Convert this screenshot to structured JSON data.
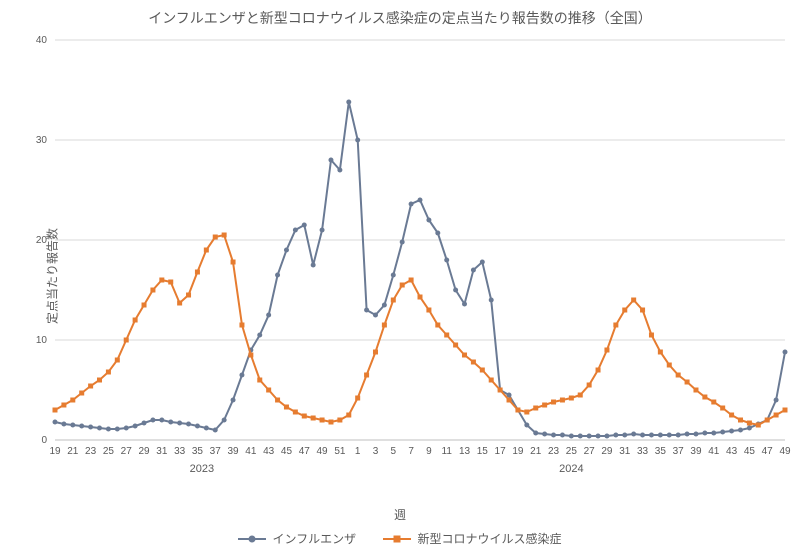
{
  "title": "インフルエンザと新型コロナウイルス感染症の定点当たり報告数の推移（全国）",
  "ylabel": "定点当たり報告数",
  "xlabel": "週",
  "chart": {
    "type": "line",
    "background_color": "#ffffff",
    "grid_color": "#d9d9d9",
    "axis_color": "#bfbfbf",
    "text_color": "#595959",
    "title_fontsize": 14,
    "label_fontsize": 12,
    "tick_fontsize": 10,
    "ylim": [
      0,
      40
    ],
    "ytick_step": 10,
    "marker_size": 5,
    "line_width": 2,
    "years": [
      {
        "label": "2023",
        "from_index": 0,
        "to_index": 33
      },
      {
        "label": "2024",
        "from_index": 34,
        "to_index": 82
      }
    ],
    "x_tick_step": 2,
    "weeks": [
      19,
      20,
      21,
      22,
      23,
      24,
      25,
      26,
      27,
      28,
      29,
      30,
      31,
      32,
      33,
      34,
      35,
      36,
      37,
      38,
      39,
      40,
      41,
      42,
      43,
      44,
      45,
      46,
      47,
      48,
      49,
      50,
      51,
      52,
      1,
      2,
      3,
      4,
      5,
      6,
      7,
      8,
      9,
      10,
      11,
      12,
      13,
      14,
      15,
      16,
      17,
      18,
      19,
      20,
      21,
      22,
      23,
      24,
      25,
      26,
      27,
      28,
      29,
      30,
      31,
      32,
      33,
      34,
      35,
      36,
      37,
      38,
      39,
      40,
      41,
      42,
      43,
      44,
      45,
      46,
      47,
      48,
      49
    ],
    "series": [
      {
        "key": "influenza",
        "label": "インフルエンザ",
        "color": "#6a7a94",
        "marker": "circle",
        "values": [
          1.8,
          1.6,
          1.5,
          1.4,
          1.3,
          1.2,
          1.1,
          1.1,
          1.2,
          1.4,
          1.7,
          2.0,
          2.0,
          1.8,
          1.7,
          1.6,
          1.4,
          1.2,
          1.0,
          2.0,
          4.0,
          6.5,
          9.0,
          10.5,
          12.5,
          16.5,
          19.0,
          21.0,
          21.5,
          17.5,
          21.0,
          28.0,
          27.0,
          33.8,
          30.0,
          13.0,
          12.5,
          13.5,
          16.5,
          19.8,
          23.6,
          24.0,
          22.0,
          20.7,
          18.0,
          15.0,
          13.6,
          17.0,
          17.8,
          14.0,
          5.0,
          4.5,
          3.0,
          1.5,
          0.7,
          0.6,
          0.5,
          0.5,
          0.4,
          0.4,
          0.4,
          0.4,
          0.4,
          0.5,
          0.5,
          0.6,
          0.5,
          0.5,
          0.5,
          0.5,
          0.5,
          0.6,
          0.6,
          0.7,
          0.7,
          0.8,
          0.9,
          1.0,
          1.2,
          1.6,
          2.0,
          4.0,
          8.8
        ]
      },
      {
        "key": "covid",
        "label": "新型コロナウイルス感染症",
        "color": "#e67c30",
        "marker": "square",
        "values": [
          3.0,
          3.5,
          4.0,
          4.7,
          5.4,
          6.0,
          6.8,
          8.0,
          10.0,
          12.0,
          13.5,
          15.0,
          16.0,
          15.8,
          13.7,
          14.5,
          16.8,
          19.0,
          20.3,
          20.5,
          17.8,
          11.5,
          8.5,
          6.0,
          5.0,
          4.0,
          3.3,
          2.8,
          2.4,
          2.2,
          2.0,
          1.8,
          2.0,
          2.5,
          4.2,
          6.5,
          8.8,
          11.5,
          14.0,
          15.5,
          16.0,
          14.3,
          13.0,
          11.5,
          10.5,
          9.5,
          8.5,
          7.8,
          7.0,
          6.0,
          5.0,
          4.0,
          3.0,
          2.8,
          3.2,
          3.5,
          3.8,
          4.0,
          4.2,
          4.5,
          5.5,
          7.0,
          9.0,
          11.5,
          13.0,
          14.0,
          13.0,
          10.5,
          8.8,
          7.5,
          6.5,
          5.8,
          5.0,
          4.3,
          3.8,
          3.2,
          2.5,
          2.0,
          1.7,
          1.5,
          2.0,
          2.5,
          3.0
        ]
      }
    ]
  },
  "legend": {
    "influenza": "インフルエンザ",
    "covid": "新型コロナウイルス感染症"
  }
}
